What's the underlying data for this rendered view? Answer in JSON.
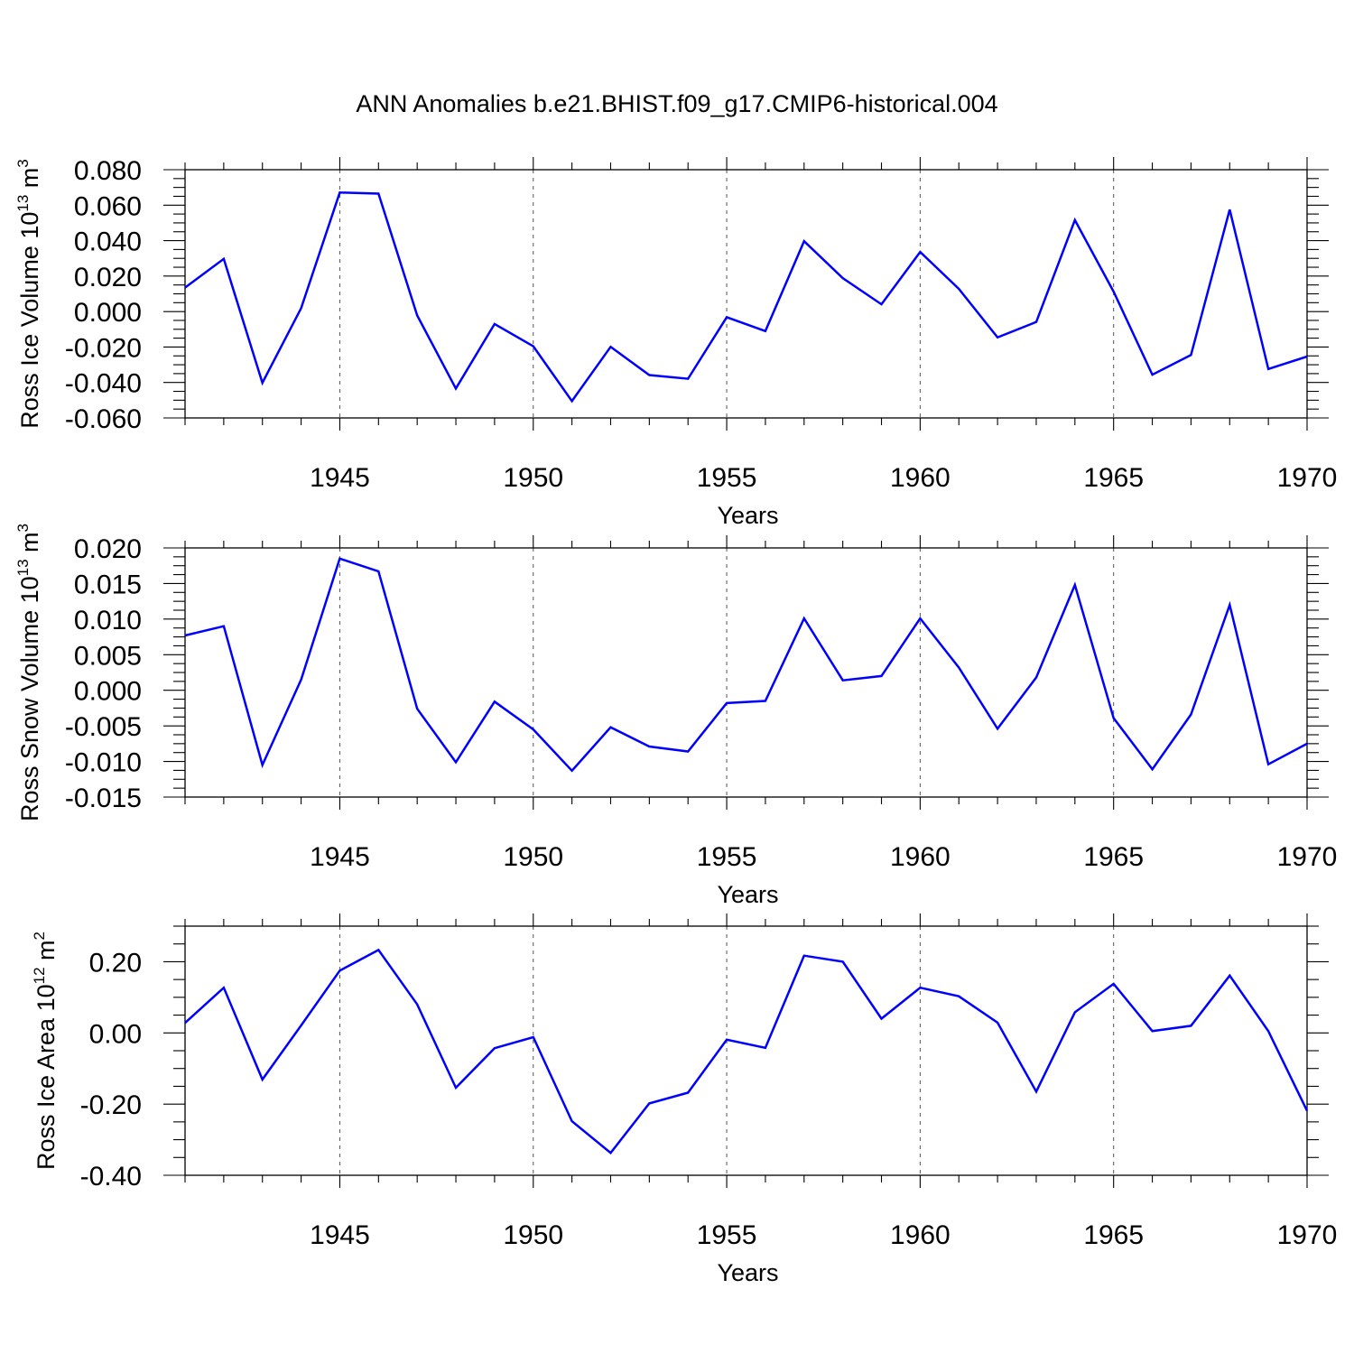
{
  "figure": {
    "title": "ANN Anomalies b.e21.BHIST.f09_g17.CMIP6-historical.004"
  },
  "chart_data": [
    {
      "type": "line",
      "title": "",
      "xlabel": "Years",
      "ylabel": {
        "text": "Ross Ice Volume 10",
        "sup": "13",
        "unit": " m",
        "unit_sup": "3"
      },
      "xlim": [
        1941,
        1970
      ],
      "ylim": [
        -0.06,
        0.08
      ],
      "x_ticks": [
        1945,
        1950,
        1955,
        1960,
        1965,
        1970
      ],
      "y_ticks": [
        -0.06,
        -0.04,
        -0.02,
        0.0,
        0.02,
        0.04,
        0.06,
        0.08
      ],
      "y_tick_labels": [
        "-0.060",
        "-0.040",
        "-0.020",
        "0.000",
        "0.020",
        "0.040",
        "0.060",
        "0.080"
      ],
      "grid": "vertical dashed at major x ticks",
      "line_color": "#0000ff",
      "x": [
        1941,
        1942,
        1943,
        1944,
        1945,
        1946,
        1947,
        1948,
        1949,
        1950,
        1951,
        1952,
        1953,
        1954,
        1955,
        1956,
        1957,
        1958,
        1959,
        1960,
        1961,
        1962,
        1963,
        1964,
        1965,
        1966,
        1967,
        1968,
        1969,
        1970
      ],
      "values": [
        0.0135,
        0.0297,
        -0.0402,
        0.0019,
        0.0671,
        0.0665,
        -0.0022,
        -0.0434,
        -0.007,
        -0.0196,
        -0.0505,
        -0.0199,
        -0.0358,
        -0.0379,
        -0.0032,
        -0.011,
        0.0397,
        0.0188,
        0.0041,
        0.0336,
        0.0128,
        -0.0146,
        -0.0059,
        0.0516,
        0.0112,
        -0.0356,
        -0.0245,
        0.0575,
        -0.0324,
        -0.0254
      ]
    },
    {
      "type": "line",
      "title": "",
      "xlabel": "Years",
      "ylabel": {
        "text": "Ross Snow Volume 10",
        "sup": "13",
        "unit": " m",
        "unit_sup": "3"
      },
      "xlim": [
        1941,
        1970
      ],
      "ylim": [
        -0.015,
        0.02
      ],
      "x_ticks": [
        1945,
        1950,
        1955,
        1960,
        1965,
        1970
      ],
      "y_ticks": [
        -0.015,
        -0.01,
        -0.005,
        0.0,
        0.005,
        0.01,
        0.015,
        0.02
      ],
      "y_tick_labels": [
        "-0.015",
        "-0.010",
        "-0.005",
        "0.000",
        "0.005",
        "0.010",
        "0.015",
        "0.020"
      ],
      "grid": "vertical dashed at major x ticks",
      "line_color": "#0000ff",
      "x": [
        1941,
        1942,
        1943,
        1944,
        1945,
        1946,
        1947,
        1948,
        1949,
        1950,
        1951,
        1952,
        1953,
        1954,
        1955,
        1956,
        1957,
        1958,
        1959,
        1960,
        1961,
        1962,
        1963,
        1964,
        1965,
        1966,
        1967,
        1968,
        1969,
        1970
      ],
      "values": [
        0.0077,
        0.009,
        -0.0105,
        0.0015,
        0.0185,
        0.0167,
        -0.0026,
        -0.0101,
        -0.0016,
        -0.0055,
        -0.0113,
        -0.0052,
        -0.0079,
        -0.0086,
        -0.0018,
        -0.0015,
        0.0101,
        0.0014,
        0.002,
        0.0101,
        0.0032,
        -0.0054,
        0.0018,
        0.0148,
        -0.0039,
        -0.0111,
        -0.0034,
        0.012,
        -0.0104,
        -0.0075
      ]
    },
    {
      "type": "line",
      "title": "",
      "xlabel": "Years",
      "ylabel": {
        "text": "Ross Ice Area 10",
        "sup": "12",
        "unit": " m",
        "unit_sup": "2"
      },
      "xlim": [
        1941,
        1970
      ],
      "ylim": [
        -0.4,
        0.3
      ],
      "x_ticks": [
        1945,
        1950,
        1955,
        1960,
        1965,
        1970
      ],
      "y_ticks": [
        -0.4,
        -0.2,
        0.0,
        0.2
      ],
      "y_tick_labels": [
        "-0.40",
        "-0.20",
        "0.00",
        "0.20"
      ],
      "grid": "vertical dashed at major x ticks",
      "line_color": "#0000ff",
      "x": [
        1941,
        1942,
        1943,
        1944,
        1945,
        1946,
        1947,
        1948,
        1949,
        1950,
        1951,
        1952,
        1953,
        1954,
        1955,
        1956,
        1957,
        1958,
        1959,
        1960,
        1961,
        1962,
        1963,
        1964,
        1965,
        1966,
        1967,
        1968,
        1969,
        1970
      ],
      "values": [
        0.028,
        0.127,
        -0.131,
        0.021,
        0.175,
        0.233,
        0.08,
        -0.154,
        -0.043,
        -0.012,
        -0.248,
        -0.337,
        -0.198,
        -0.168,
        -0.019,
        -0.042,
        0.217,
        0.2,
        0.04,
        0.127,
        0.103,
        0.029,
        -0.165,
        0.058,
        0.138,
        0.005,
        0.02,
        0.161,
        0.005,
        -0.219
      ]
    }
  ]
}
